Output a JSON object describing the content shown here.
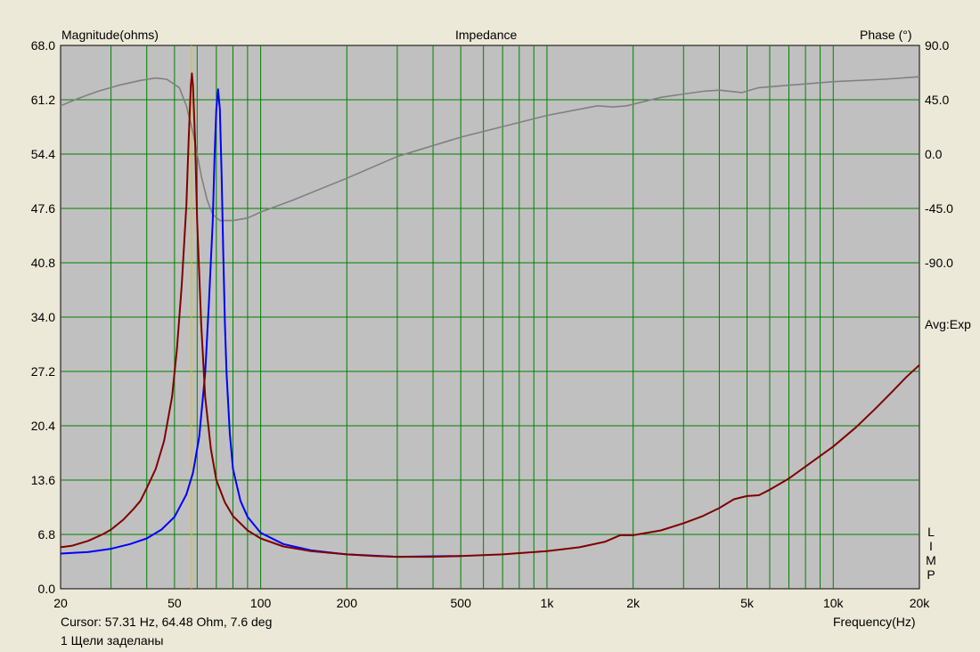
{
  "window": {
    "title": "Impedance",
    "ylabel_left": "Magnitude(ohms)",
    "ylabel_right": "Phase (°)",
    "xlabel": "Frequency(Hz)",
    "cursor_readout": "Cursor: 57.31 Hz, 64.48 Ohm, 7.6 deg",
    "caption": "1 Щели заделаны",
    "avg_label": "Avg:Exp",
    "side_legend": [
      "L",
      "I",
      "M",
      "P"
    ]
  },
  "colors": {
    "plot_bg": "#c0c0c0",
    "grid": "#008000",
    "impedance_1": "#800000",
    "impedance_2": "#0000ff",
    "phase": "#808080",
    "cursor": "#e8c000"
  },
  "chart_data": {
    "type": "line",
    "title": "Impedance",
    "xlabel": "Frequency(Hz)",
    "ylabel": "Magnitude(ohms)",
    "ylabel_right": "Phase (°)",
    "xscale": "log",
    "xlim": [
      20,
      20000
    ],
    "ylim": [
      0,
      68
    ],
    "ylim_right": [
      -360,
      90
    ],
    "grid": true,
    "x_tick_labels": [
      {
        "value": 20,
        "label": "20"
      },
      {
        "value": 50,
        "label": "50"
      },
      {
        "value": 100,
        "label": "100"
      },
      {
        "value": 200,
        "label": "200"
      },
      {
        "value": 500,
        "label": "500"
      },
      {
        "value": 1000,
        "label": "1k"
      },
      {
        "value": 2000,
        "label": "2k"
      },
      {
        "value": 5000,
        "label": "5k"
      },
      {
        "value": 10000,
        "label": "10k"
      },
      {
        "value": 20000,
        "label": "20k"
      }
    ],
    "x_gridlines": [
      30,
      40,
      50,
      60,
      70,
      80,
      90,
      100,
      200,
      300,
      400,
      500,
      600,
      700,
      800,
      900,
      1000,
      2000,
      3000,
      4000,
      5000,
      6000,
      7000,
      8000,
      9000,
      10000
    ],
    "y_ticks": [
      0,
      6.8,
      13.6,
      20.4,
      27.2,
      34,
      40.8,
      47.6,
      54.4,
      61.2,
      68
    ],
    "y_tick_labels": [
      "0.0",
      "6.8",
      "13.6",
      "20.4",
      "27.2",
      "34.0",
      "40.8",
      "47.6",
      "54.4",
      "61.2",
      "68.0"
    ],
    "y_right_ticks": [
      90,
      45,
      0,
      -45,
      -90
    ],
    "y_right_tick_labels": [
      "90.0",
      "45.0",
      "0.0",
      "-45.0",
      "-90.0"
    ],
    "cursor_x": 57.31,
    "series": [
      {
        "key": "impedance_1",
        "axis": "left",
        "x": [
          20,
          22,
          25,
          28,
          30,
          33,
          36,
          38,
          40,
          43,
          46,
          49,
          51,
          53,
          55,
          56,
          57,
          57.5,
          58,
          59,
          60,
          62,
          64,
          67,
          70,
          75,
          80,
          90,
          100,
          120,
          150,
          200,
          250,
          300,
          400,
          500,
          700,
          1000,
          1300,
          1600,
          1800,
          2000,
          2500,
          3000,
          3500,
          4000,
          4500,
          5000,
          5500,
          6000,
          7000,
          8000,
          10000,
          12000,
          14000,
          16000,
          18000,
          20000
        ],
        "values": [
          5.2,
          5.4,
          6.0,
          6.8,
          7.4,
          8.6,
          10.0,
          11.0,
          12.6,
          15.0,
          18.5,
          24.0,
          30.0,
          38.0,
          48.0,
          56.0,
          63.0,
          64.5,
          63.0,
          56.0,
          46.0,
          33.0,
          24.0,
          17.5,
          13.6,
          10.8,
          9.1,
          7.3,
          6.3,
          5.3,
          4.7,
          4.3,
          4.1,
          4.0,
          4.0,
          4.1,
          4.3,
          4.7,
          5.2,
          5.9,
          6.7,
          6.7,
          7.3,
          8.2,
          9.1,
          10.1,
          11.2,
          11.6,
          11.7,
          12.4,
          13.8,
          15.3,
          17.8,
          20.2,
          22.5,
          24.6,
          26.5,
          28.0
        ]
      },
      {
        "key": "impedance_2",
        "axis": "left",
        "x": [
          20,
          25,
          30,
          35,
          40,
          45,
          50,
          55,
          58,
          61,
          64,
          66,
          68,
          69,
          70,
          71,
          72,
          73,
          74,
          75,
          76,
          78,
          80,
          85,
          90,
          100,
          120,
          150,
          200,
          300,
          500
        ],
        "values": [
          4.4,
          4.6,
          5.0,
          5.6,
          6.3,
          7.4,
          9.0,
          11.8,
          14.5,
          19.0,
          27.0,
          36.0,
          46.0,
          54.0,
          60.0,
          62.5,
          60.0,
          52.0,
          42.0,
          33.0,
          27.0,
          19.5,
          15.0,
          11.0,
          9.0,
          7.0,
          5.6,
          4.8,
          4.3,
          4.0,
          4.1
        ]
      },
      {
        "key": "phase",
        "axis": "right",
        "x": [
          20,
          23,
          27,
          32,
          38,
          43,
          47,
          52,
          55,
          58,
          60,
          62,
          65,
          68,
          72,
          80,
          90,
          100,
          130,
          200,
          300,
          500,
          1000,
          1500,
          1700,
          1900,
          2500,
          3500,
          4000,
          4800,
          5500,
          7000,
          10000,
          15000,
          20000
        ],
        "values": [
          40,
          46,
          52,
          57,
          61,
          63,
          62,
          55,
          40,
          18,
          0,
          -18,
          -38,
          -50,
          -55,
          -55,
          -53,
          -48,
          -38,
          -20,
          -2,
          14,
          32,
          40,
          39,
          40,
          47,
          52,
          53,
          51,
          55,
          57,
          60,
          62,
          64
        ]
      }
    ]
  }
}
